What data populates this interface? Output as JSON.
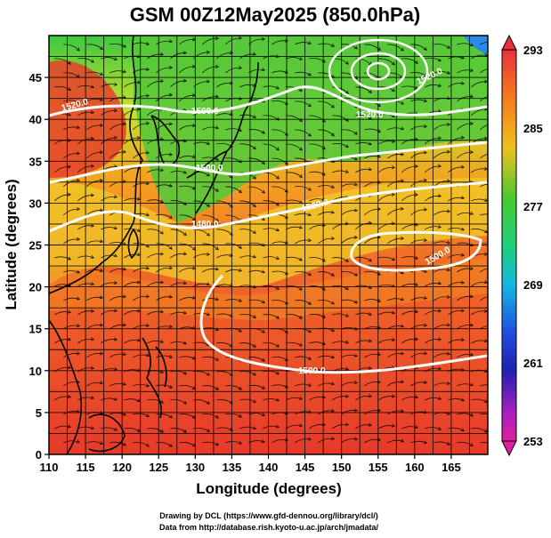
{
  "title": "GSM 00Z12May2025 (850.0hPa)",
  "xlabel": "Longitude (degrees)",
  "ylabel": "Latitude  (degrees)",
  "x_ticks": [
    "110",
    "115",
    "120",
    "125",
    "130",
    "135",
    "140",
    "145",
    "150",
    "155",
    "160",
    "165"
  ],
  "y_ticks": [
    "0",
    "5",
    "10",
    "15",
    "20",
    "25",
    "30",
    "35",
    "40",
    "45"
  ],
  "colorbar": {
    "labels": [
      "293",
      "285",
      "277",
      "269",
      "261",
      "253"
    ],
    "colors": [
      "#e8323c",
      "#f47a1f",
      "#f0c020",
      "#48c830",
      "#1ecf7a",
      "#15b8e0",
      "#2050e0",
      "#2020b0",
      "#a020c0",
      "#e020a0"
    ]
  },
  "contour_labels": [
    "1520.0",
    "1500.0",
    "1520.0",
    "1520.0",
    "1480.0",
    "1500.0",
    "1520.0",
    "1500.0",
    "1500.0"
  ],
  "credits": {
    "line1": "Drawing by DCL (https://www.gfd-dennou.org/library/dcl/)",
    "line2": "Data from http://database.rish.kyoto-u.ac.jp/arch/jmadata/"
  },
  "chart_data": {
    "type": "heatmap",
    "title": "GSM 00Z12May2025 (850.0hPa)",
    "xlabel": "Longitude (degrees)",
    "ylabel": "Latitude  (degrees)",
    "xlim": [
      110,
      170
    ],
    "ylim": [
      0,
      50
    ],
    "grid": true,
    "colorbar_range": [
      253,
      293
    ],
    "colorbar_ticks": [
      293,
      285,
      277,
      269,
      261,
      253
    ]
  }
}
